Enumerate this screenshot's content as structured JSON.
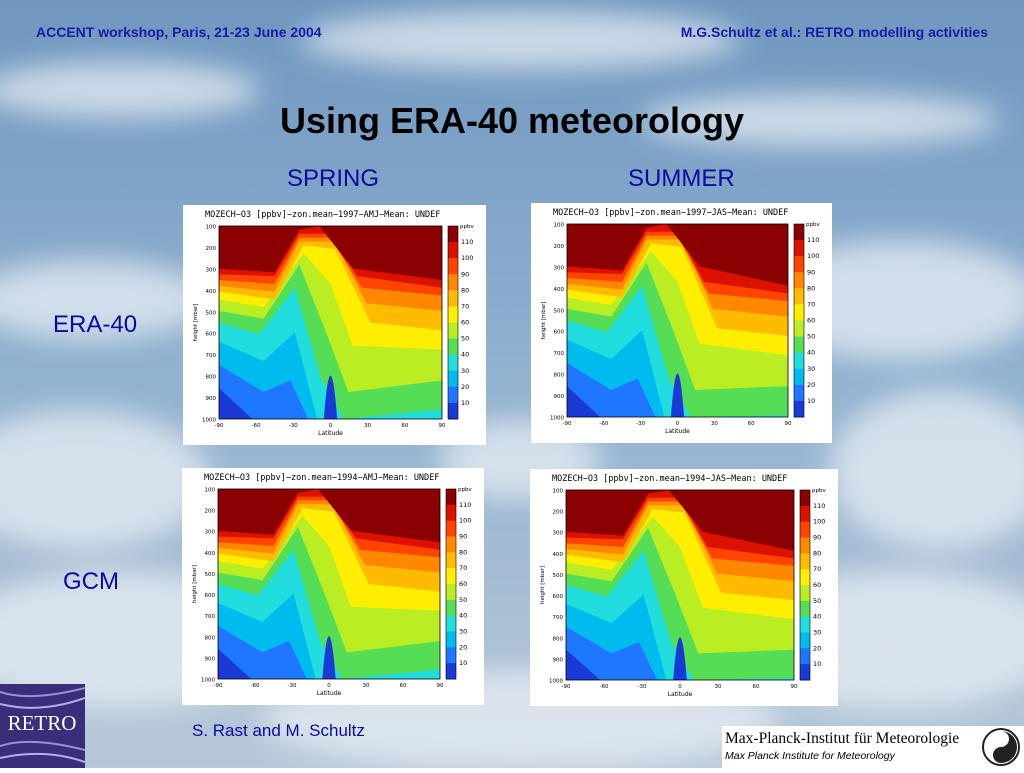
{
  "header": {
    "left": "ACCENT workshop, Paris, 21-23 June 2004",
    "right": "M.G.Schultz et al.: RETRO modelling activities"
  },
  "title": "Using ERA-40 meteorology",
  "columns": [
    "SPRING",
    "SUMMER"
  ],
  "rows": [
    "ERA-40",
    "GCM"
  ],
  "authors": "S. Rast and M. Schultz",
  "plot_common": {
    "ylabel": "height [mbar]",
    "xlabel": "Latitude",
    "unit": "ppbv",
    "y_ticks": [
      "100",
      "200",
      "300",
      "400",
      "500",
      "600",
      "700",
      "800",
      "900",
      "1000"
    ],
    "x_ticks": [
      "-90",
      "-60",
      "-30",
      "0",
      "30",
      "60",
      "90"
    ],
    "colorbar_levels": [
      "110",
      "100",
      "90",
      "80",
      "70",
      "60",
      "50",
      "40",
      "30",
      "20",
      "10"
    ],
    "colorbar_colors": [
      "#8b0000",
      "#dd1100",
      "#ff4400",
      "#ff8800",
      "#ffbb00",
      "#ffee00",
      "#bbee22",
      "#55dd55",
      "#22dddd",
      "#00bbee",
      "#1f77ff",
      "#1a3ad8"
    ]
  },
  "plots": [
    {
      "title": "MOZECH−O3 [ppbv]−zon.mean−1997−AMJ−Mean: UNDEF",
      "season": "spring"
    },
    {
      "title": "MOZECH−O3 [ppbv]−zon.mean−1997−JAS−Mean: UNDEF",
      "season": "summer"
    },
    {
      "title": "MOZECH−O3 [ppbv]−zon.mean−1994−AMJ−Mean: UNDEF",
      "season": "spring"
    },
    {
      "title": "MOZECH−O3 [ppbv]−zon.mean−1994−JAS−Mean: UNDEF",
      "season": "summer"
    }
  ],
  "logos": {
    "retro_text": "RETRO",
    "mpi_de": "Max-Planck-Institut für Meteorologie",
    "mpi_en": "Max Planck Institute for Meteorology"
  }
}
